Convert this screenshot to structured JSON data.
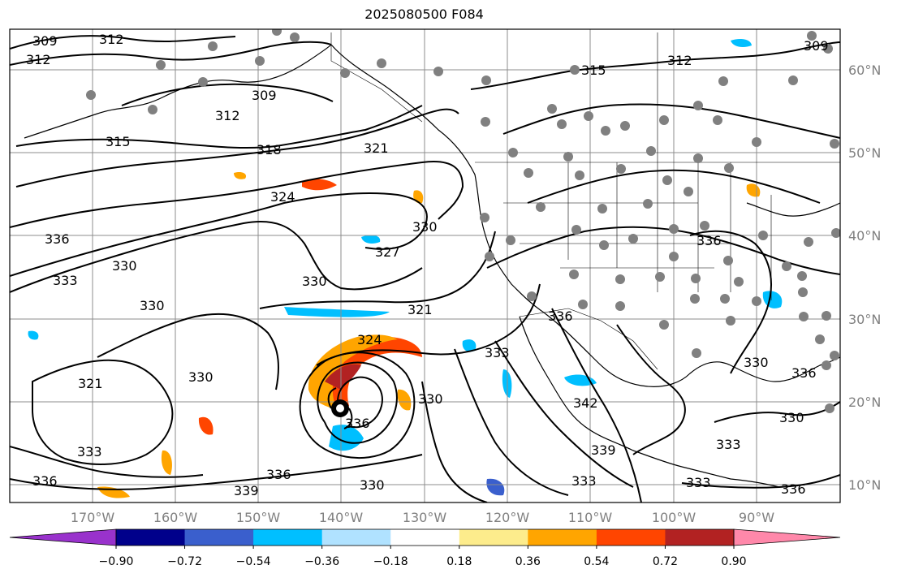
{
  "title": "2025080500 F084",
  "map": {
    "lat_labels": [
      "60°N",
      "50°N",
      "40°N",
      "30°N",
      "20°N",
      "10°N"
    ],
    "lon_labels": [
      "170°W",
      "160°W",
      "150°W",
      "140°W",
      "130°W",
      "120°W",
      "110°W",
      "100°W",
      "90°W"
    ],
    "contour_labels": [
      "309",
      "312",
      "312",
      "309",
      "312",
      "315",
      "318",
      "321",
      "324",
      "327",
      "330",
      "330",
      "336",
      "333",
      "330",
      "330",
      "321",
      "321",
      "324",
      "330",
      "336",
      "330",
      "333",
      "336",
      "339",
      "336",
      "330",
      "333",
      "342",
      "339",
      "333",
      "336",
      "330",
      "330",
      "336",
      "333",
      "333",
      "312",
      "315",
      "309",
      "336",
      "336"
    ],
    "storm_marker": "tropical-cyclone-symbol"
  },
  "colorbar": {
    "colors": [
      "#9932cc",
      "#00008b",
      "#3a5fcd",
      "#00bfff",
      "#b0e2ff",
      "#ffffff",
      "#fdec8c",
      "#ffa500",
      "#ff4500",
      "#b22222",
      "#ff88aa"
    ],
    "tick_labels": [
      "−0.90",
      "−0.72",
      "−0.54",
      "−0.36",
      "−0.18",
      "0.18",
      "0.36",
      "0.54",
      "0.72",
      "0.90"
    ]
  }
}
